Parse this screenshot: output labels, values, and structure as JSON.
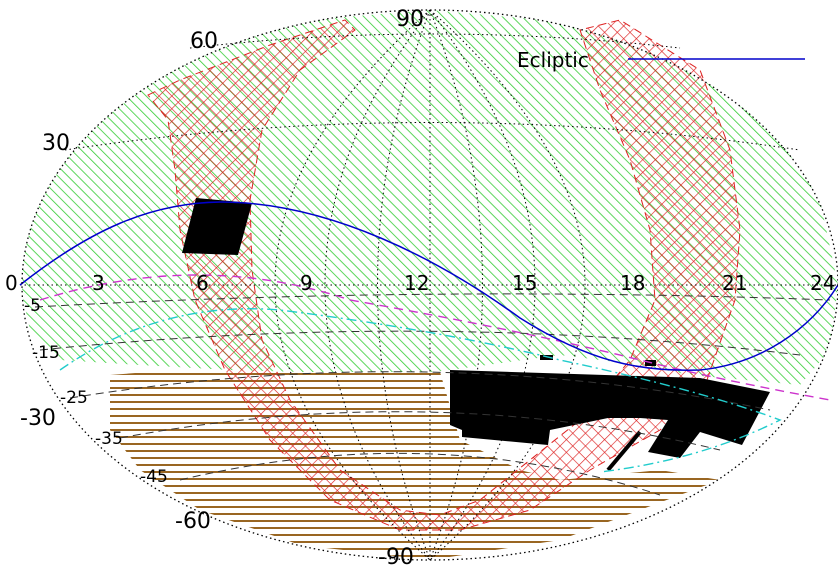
{
  "map": {
    "projection": "aitoff-like all-sky",
    "colors": {
      "background": "#ffffff",
      "boundary": "#000000",
      "grid": "#000000",
      "ecliptic": "#0000cc",
      "green_region": "#33cc33",
      "red_region": "#dd2222",
      "brown_region": "#996622",
      "black_region": "#000000",
      "magenta_curve": "#cc33cc",
      "cyan_curve": "#22cccc",
      "dashed_lines": "#333333"
    },
    "ra_hours": [
      "0",
      "3",
      "6",
      "9",
      "12",
      "15",
      "18",
      "21",
      "24"
    ],
    "dec_major": [
      "90",
      "60",
      "30",
      "-30",
      "-60",
      "-90"
    ],
    "dec_minor": [
      "-5",
      "-15",
      "-25",
      "-35",
      "-45"
    ],
    "legend": {
      "label": "Ecliptic"
    }
  }
}
